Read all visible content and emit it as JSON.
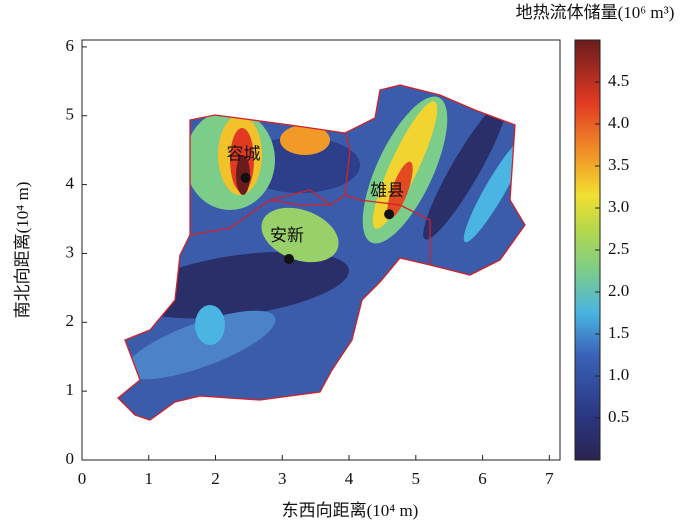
{
  "chart_data": {
    "type": "scatter",
    "x_label": "东西向距离(10⁴ m)",
    "y_label": "南北向距离(10⁴ m)",
    "colorbar_label": "地热流体储量(10⁶ m³)",
    "xlim": [
      0,
      7.16
    ],
    "ylim": [
      0,
      6.1
    ],
    "xticks": [
      0,
      1,
      2,
      3,
      4,
      5,
      6,
      7
    ],
    "yticks": [
      0,
      1,
      2,
      3,
      4,
      5,
      6
    ],
    "clim": [
      0,
      5
    ],
    "cticks": [
      {
        "value": 0.5,
        "label": "0.5"
      },
      {
        "value": 1,
        "label": "1.0"
      },
      {
        "value": 1.5,
        "label": "1.5"
      },
      {
        "value": 2,
        "label": "2.0"
      },
      {
        "value": 2.5,
        "label": "2.5"
      },
      {
        "value": 3,
        "label": "3.0"
      },
      {
        "value": 3.5,
        "label": "3.5"
      },
      {
        "value": 4,
        "label": "4.0"
      },
      {
        "value": 4.5,
        "label": "4.5"
      }
    ],
    "color": "#111111",
    "points": [
      {
        "label": "容城",
        "x": 2.45,
        "y": 4.1
      },
      {
        "label": "雄县",
        "x": 4.6,
        "y": 3.57
      },
      {
        "label": "安新",
        "x": 3.1,
        "y": 2.92
      }
    ]
  }
}
